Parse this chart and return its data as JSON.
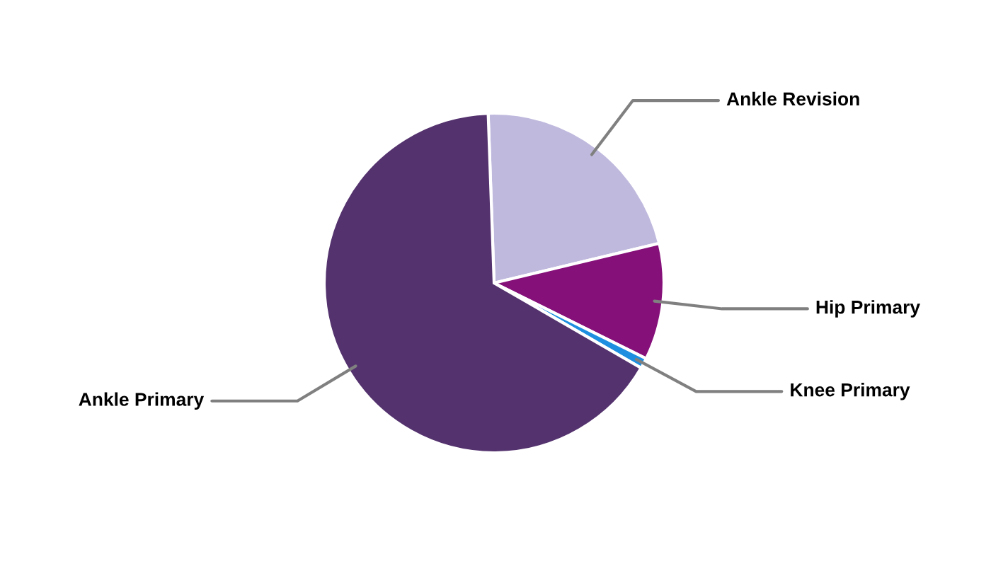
{
  "chart_data": {
    "type": "pie",
    "categories": [
      "Ankle Revision",
      "Hip Primary",
      "Knee Primary",
      "Ankle Primary"
    ],
    "values": [
      21.8,
      11.1,
      1.0,
      66.1
    ],
    "colors": [
      "#c0b9de",
      "#86107a",
      "#1e8fe0",
      "#54326e"
    ],
    "legend": false
  }
}
